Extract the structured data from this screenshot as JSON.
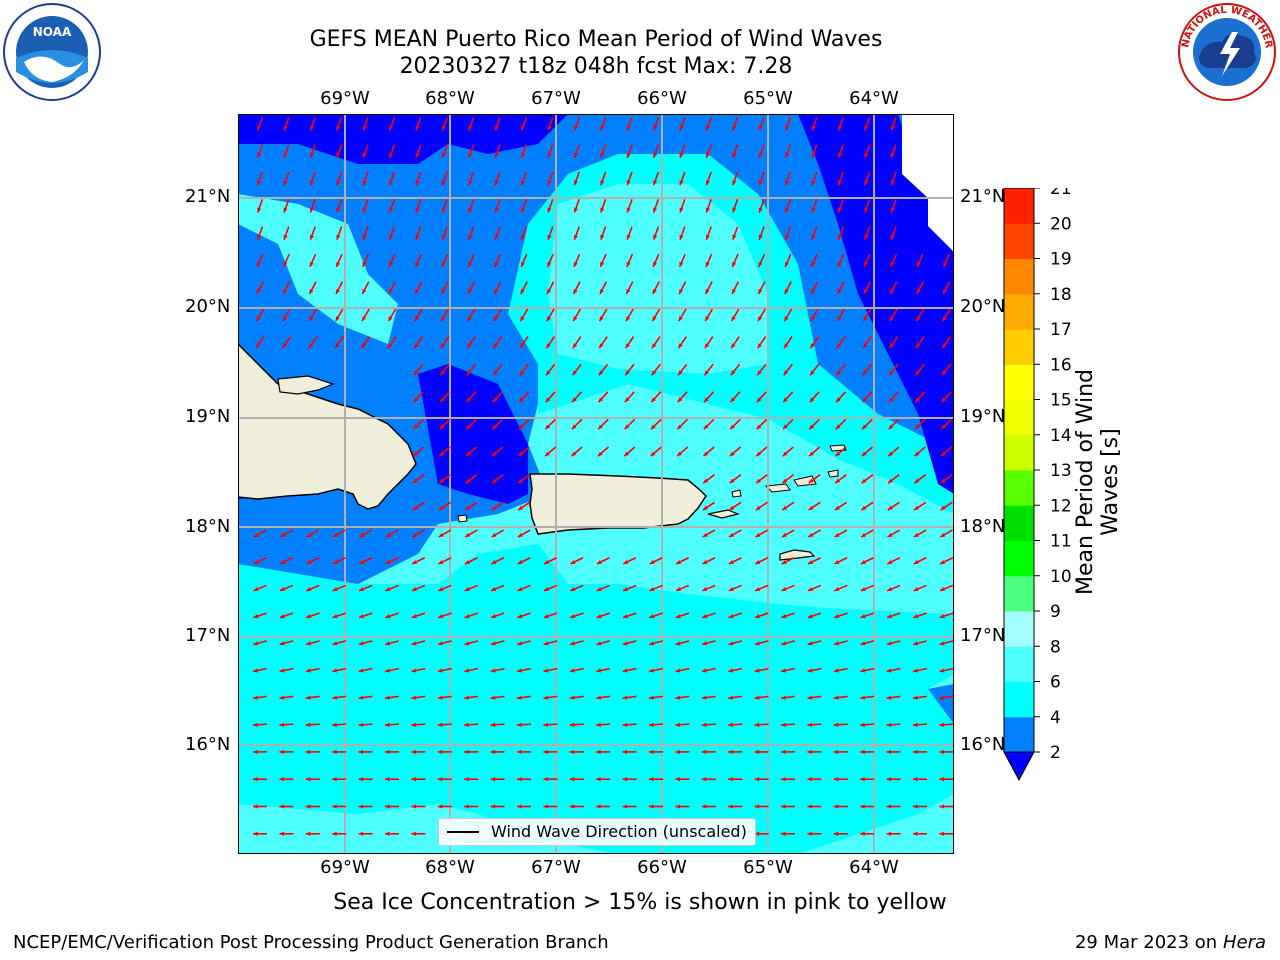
{
  "title": {
    "line1": "GEFS MEAN Puerto Rico Mean Period of Wind Waves",
    "line2": "20230327 t18z 048h fcst   Max: 7.28"
  },
  "logos": {
    "left": "noaa-logo",
    "right": "national-weather-service-logo",
    "left_text": [
      "NOAA",
      "NATIONAL OCEANIC AND ATMOSPHERIC ADMINISTRATION",
      "U.S. DEPARTMENT OF COMMERCE"
    ],
    "right_text": "NATIONAL WEATHER SERVICE"
  },
  "map": {
    "lon_labels": [
      "69°W",
      "68°W",
      "67°W",
      "66°W",
      "65°W",
      "64°W"
    ],
    "lat_labels": [
      "21°N",
      "20°N",
      "19°N",
      "18°N",
      "17°N",
      "16°N"
    ],
    "lon_range": [
      -70.0,
      -63.25
    ],
    "lat_range": [
      15.0,
      21.75
    ],
    "grid": true,
    "arrow_color": "#ff0000",
    "land_color": "#efeedb",
    "legend_text": "Wind Wave Direction (unscaled)"
  },
  "colorbar": {
    "label": "Mean Period of Wind Waves [s]",
    "ticks": [
      "2",
      "4",
      "6",
      "8",
      "9",
      "10",
      "11",
      "12",
      "13",
      "14",
      "15",
      "16",
      "17",
      "18",
      "19",
      "20",
      "21"
    ],
    "colors": [
      "#0022ff",
      "#0080ff",
      "#00ffff",
      "#4fffff",
      "#a6ffff",
      "#4dff80",
      "#00ff00",
      "#00e000",
      "#55ff00",
      "#ccff00",
      "#eeff00",
      "#ffff00",
      "#ffcc00",
      "#ffaa00",
      "#ff8800",
      "#ff4400",
      "#ff2200",
      "#ff0000"
    ],
    "extend_color": "#0000ff"
  },
  "subcaption": "Sea Ice Concentration > 15% is shown in pink to yellow",
  "footer": {
    "left": "NCEP/EMC/Verification Post Processing Product Generation Branch",
    "right_date": "29 Mar 2023 on",
    "right_host": "Hera"
  }
}
